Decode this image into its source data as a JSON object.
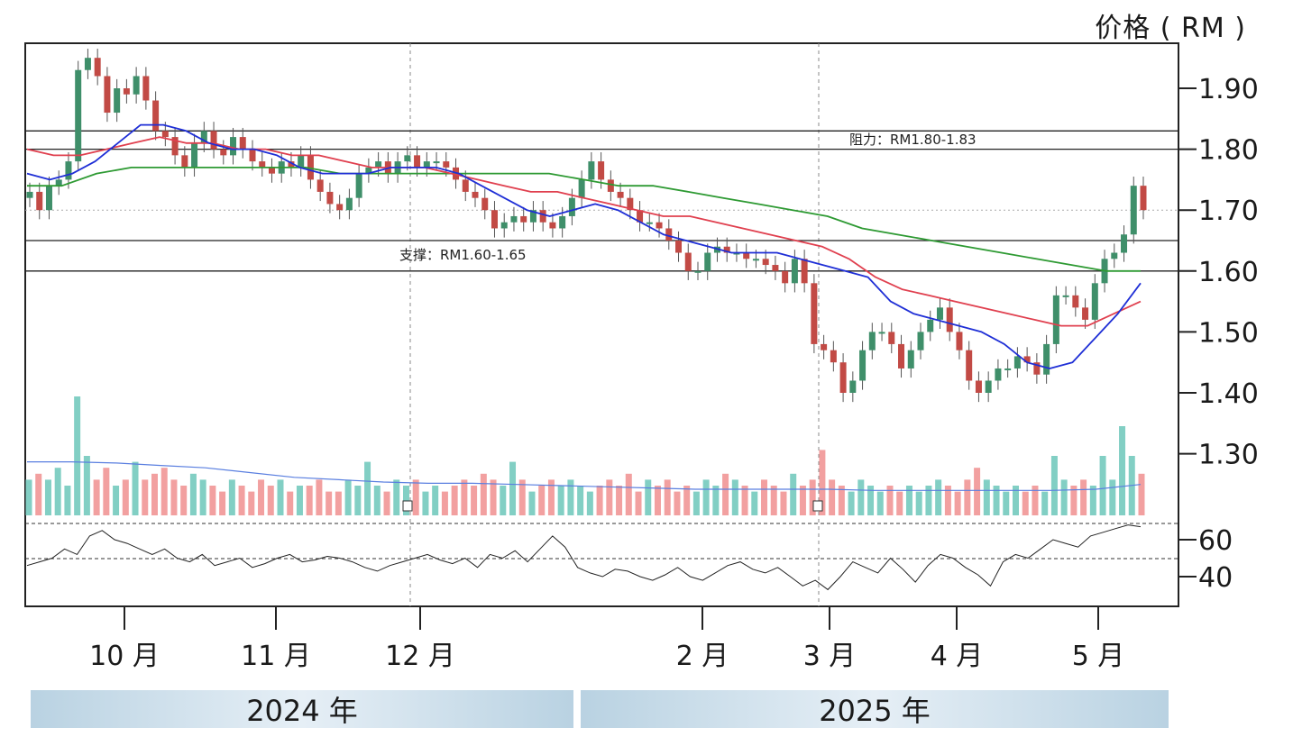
{
  "y_axis_title": "价格 ( RM )",
  "price_ticks": [
    "1.90",
    "1.80",
    "1.70",
    "1.60",
    "1.50",
    "1.40",
    "1.30"
  ],
  "rsi_ticks": [
    "60",
    "40"
  ],
  "month_labels": [
    "10 月",
    "11 月",
    "12 月",
    "2 月",
    "3 月",
    "4 月",
    "5 月"
  ],
  "year_labels": [
    "2024 年",
    "2025 年"
  ],
  "annotations": {
    "resistance": "阻力：RM1.80-1.83",
    "support": "支撑：RM1.60-1.65"
  },
  "colors": {
    "up": "#3f8f6a",
    "down": "#c24a45",
    "ma_short": "#1f2fd6",
    "ma_mid": "#e0404f",
    "ma_long": "#2e9a33",
    "volume_up": "#82cfc4",
    "volume_down": "#f2a0a0",
    "volume_ma": "#5a7fe0"
  },
  "chart_data": {
    "type": "candlestick",
    "title": "",
    "ylabel": "价格 ( RM )",
    "ylim": [
      1.22,
      1.97
    ],
    "x_months": [
      "10 月",
      "11 月",
      "12 月",
      "2 月",
      "3 月",
      "4 月",
      "5 月"
    ],
    "years": [
      "2024 年",
      "2025 年"
    ],
    "support_lines": [
      1.6,
      1.65
    ],
    "resistance_lines": [
      1.8,
      1.83
    ],
    "close_series": [
      1.73,
      1.7,
      1.74,
      1.75,
      1.78,
      1.93,
      1.95,
      1.92,
      1.86,
      1.9,
      1.89,
      1.92,
      1.88,
      1.83,
      1.82,
      1.79,
      1.77,
      1.81,
      1.83,
      1.8,
      1.79,
      1.82,
      1.8,
      1.78,
      1.77,
      1.76,
      1.78,
      1.77,
      1.79,
      1.75,
      1.73,
      1.71,
      1.7,
      1.72,
      1.76,
      1.77,
      1.78,
      1.76,
      1.78,
      1.79,
      1.77,
      1.78,
      1.78,
      1.77,
      1.75,
      1.73,
      1.72,
      1.7,
      1.67,
      1.68,
      1.69,
      1.68,
      1.7,
      1.68,
      1.67,
      1.69,
      1.72,
      1.75,
      1.78,
      1.75,
      1.73,
      1.72,
      1.7,
      1.68,
      1.68,
      1.67,
      1.65,
      1.63,
      1.6,
      1.6,
      1.63,
      1.64,
      1.63,
      1.63,
      1.62,
      1.62,
      1.61,
      1.6,
      1.58,
      1.62,
      1.58,
      1.48,
      1.47,
      1.45,
      1.4,
      1.42,
      1.47,
      1.5,
      1.5,
      1.48,
      1.44,
      1.47,
      1.5,
      1.52,
      1.54,
      1.5,
      1.47,
      1.42,
      1.4,
      1.42,
      1.44,
      1.44,
      1.46,
      1.45,
      1.43,
      1.48,
      1.56,
      1.56,
      1.54,
      1.52,
      1.58,
      1.62,
      1.63,
      1.66,
      1.74,
      1.7
    ],
    "ma_short": [
      1.76,
      1.75,
      1.76,
      1.78,
      1.81,
      1.84,
      1.84,
      1.83,
      1.81,
      1.8,
      1.8,
      1.79,
      1.77,
      1.76,
      1.76,
      1.76,
      1.77,
      1.77,
      1.77,
      1.76,
      1.74,
      1.72,
      1.7,
      1.69,
      1.7,
      1.71,
      1.7,
      1.68,
      1.66,
      1.65,
      1.64,
      1.63,
      1.63,
      1.63,
      1.62,
      1.61,
      1.6,
      1.59,
      1.55,
      1.53,
      1.52,
      1.51,
      1.5,
      1.48,
      1.45,
      1.44,
      1.45,
      1.49,
      1.53,
      1.58
    ],
    "ma_mid": [
      1.8,
      1.79,
      1.79,
      1.8,
      1.81,
      1.82,
      1.81,
      1.81,
      1.8,
      1.8,
      1.79,
      1.79,
      1.78,
      1.77,
      1.77,
      1.77,
      1.76,
      1.75,
      1.74,
      1.73,
      1.73,
      1.72,
      1.71,
      1.7,
      1.69,
      1.69,
      1.68,
      1.67,
      1.66,
      1.65,
      1.64,
      1.62,
      1.59,
      1.57,
      1.56,
      1.55,
      1.54,
      1.53,
      1.52,
      1.51,
      1.51,
      1.53,
      1.55
    ],
    "ma_long": [
      1.74,
      1.74,
      1.76,
      1.77,
      1.77,
      1.77,
      1.77,
      1.77,
      1.77,
      1.76,
      1.76,
      1.76,
      1.76,
      1.76,
      1.76,
      1.76,
      1.75,
      1.74,
      1.74,
      1.73,
      1.72,
      1.71,
      1.7,
      1.69,
      1.67,
      1.66,
      1.65,
      1.64,
      1.63,
      1.62,
      1.61,
      1.6,
      1.6
    ],
    "volume_relative": [
      0.3,
      0.35,
      0.3,
      0.4,
      0.25,
      1.0,
      0.5,
      0.3,
      0.4,
      0.25,
      0.3,
      0.45,
      0.3,
      0.35,
      0.4,
      0.3,
      0.25,
      0.35,
      0.3,
      0.25,
      0.2,
      0.3,
      0.25,
      0.2,
      0.3,
      0.25,
      0.3,
      0.2,
      0.25,
      0.25,
      0.3,
      0.2,
      0.2,
      0.3,
      0.25,
      0.45,
      0.25,
      0.2,
      0.3,
      0.25,
      0.3,
      0.2,
      0.25,
      0.2,
      0.25,
      0.3,
      0.25,
      0.35,
      0.3,
      0.25,
      0.45,
      0.3,
      0.2,
      0.25,
      0.3,
      0.25,
      0.3,
      0.25,
      0.2,
      0.25,
      0.3,
      0.25,
      0.35,
      0.2,
      0.3,
      0.25,
      0.3,
      0.2,
      0.25,
      0.2,
      0.3,
      0.25,
      0.35,
      0.3,
      0.25,
      0.2,
      0.3,
      0.25,
      0.2,
      0.35,
      0.25,
      0.3,
      0.55,
      0.3,
      0.25,
      0.2,
      0.3,
      0.25,
      0.2,
      0.25,
      0.2,
      0.25,
      0.2,
      0.25,
      0.3,
      0.25,
      0.2,
      0.3,
      0.4,
      0.3,
      0.25,
      0.2,
      0.25,
      0.2,
      0.25,
      0.2,
      0.5,
      0.3,
      0.25,
      0.3,
      0.25,
      0.5,
      0.3,
      0.75,
      0.5,
      0.35
    ],
    "volume_ma": [
      0.45,
      0.45,
      0.44,
      0.42,
      0.4,
      0.36,
      0.32,
      0.3,
      0.28,
      0.27,
      0.27,
      0.26,
      0.25,
      0.24,
      0.23,
      0.22,
      0.22,
      0.22,
      0.22,
      0.21,
      0.21,
      0.21,
      0.21,
      0.21,
      0.22,
      0.26
    ],
    "rsi": [
      46,
      48,
      50,
      55,
      52,
      62,
      65,
      60,
      58,
      55,
      52,
      55,
      50,
      48,
      52,
      46,
      48,
      50,
      45,
      47,
      50,
      52,
      48,
      49,
      51,
      50,
      48,
      45,
      43,
      46,
      48,
      50,
      52,
      49,
      47,
      50,
      45,
      52,
      50,
      54,
      48,
      55,
      62,
      56,
      45,
      42,
      40,
      44,
      43,
      40,
      38,
      41,
      45,
      40,
      38,
      42,
      46,
      48,
      44,
      42,
      45,
      40,
      35,
      38,
      33,
      40,
      48,
      45,
      42,
      50,
      44,
      37,
      46,
      52,
      50,
      45,
      41,
      35,
      48,
      52,
      50,
      55,
      60,
      58,
      56,
      62,
      64,
      66,
      68,
      67
    ]
  }
}
